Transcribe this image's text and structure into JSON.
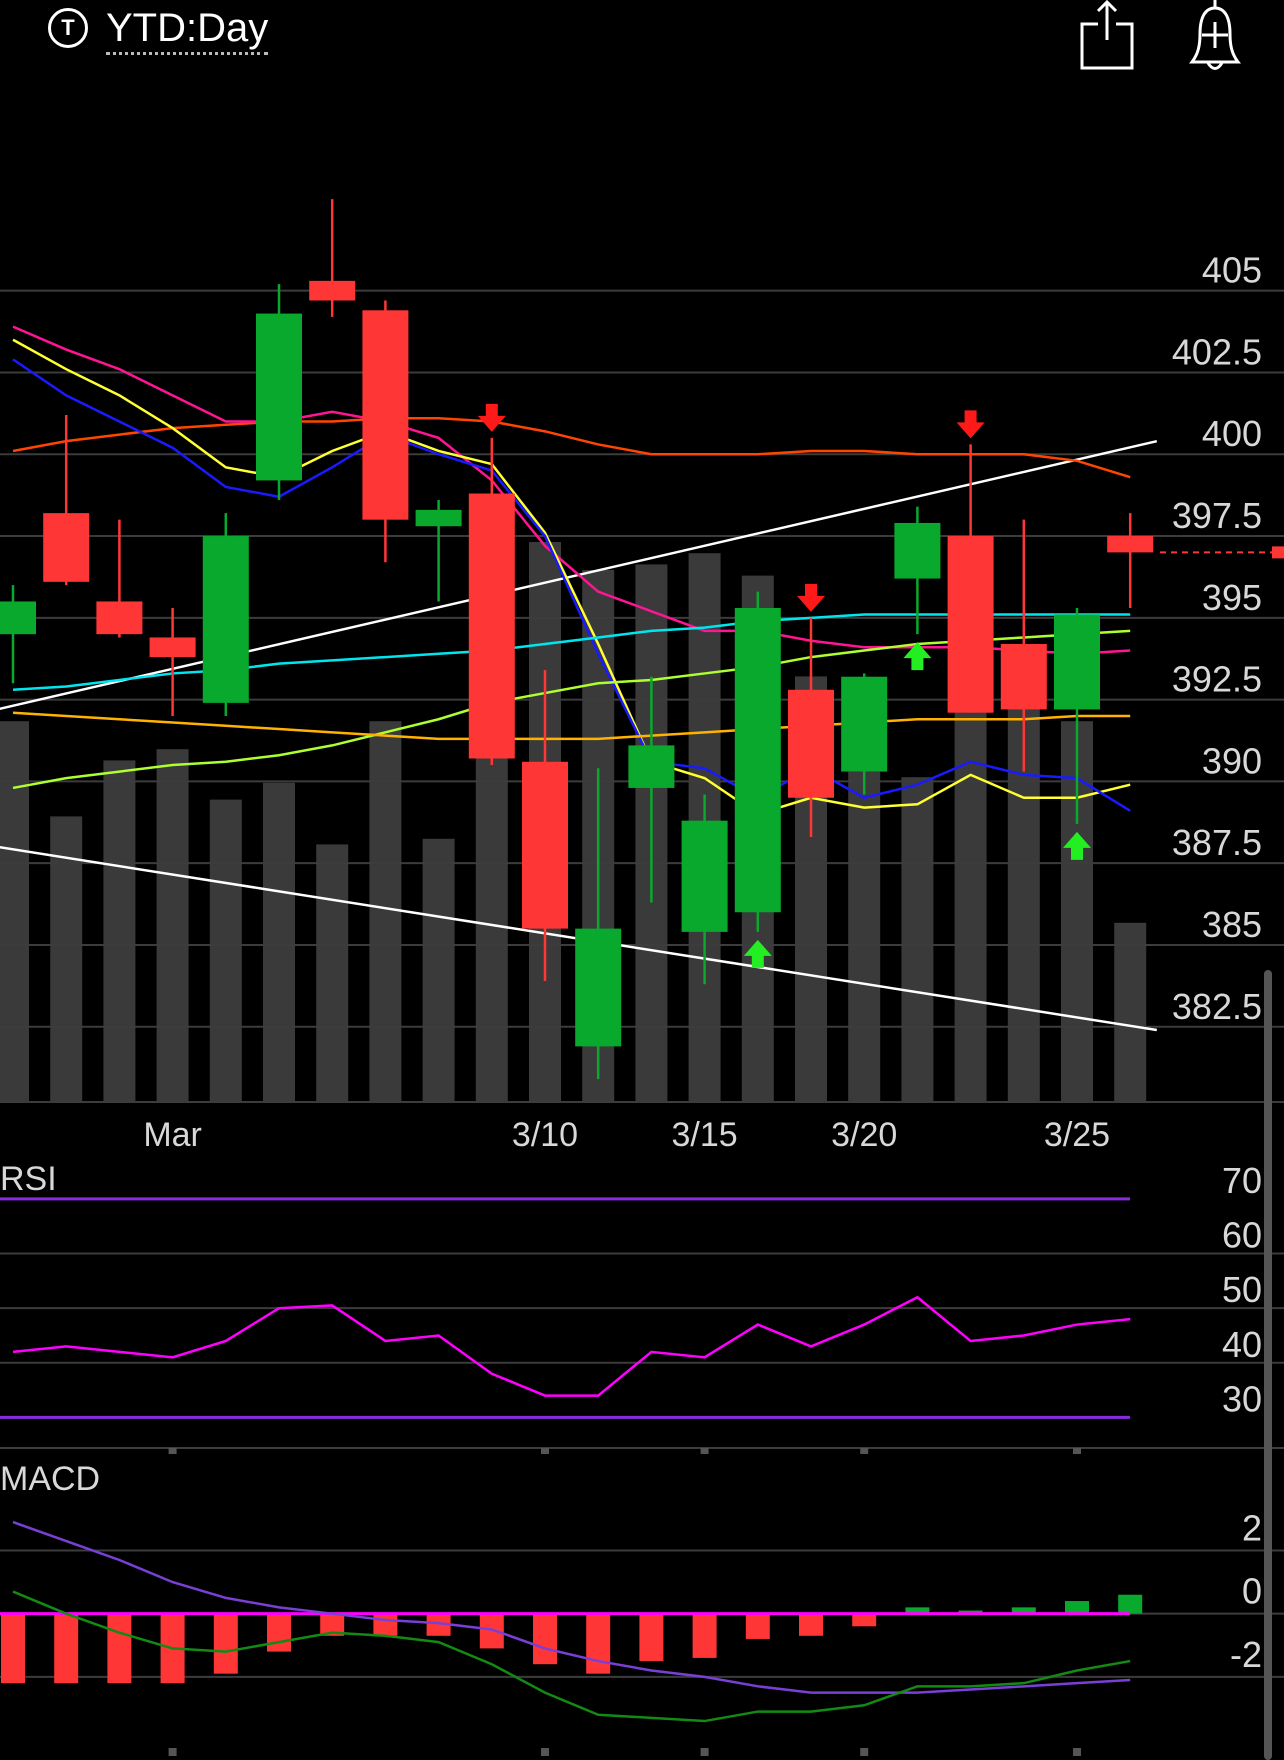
{
  "header": {
    "ticker_icon_letter": "T",
    "range_label": "YTD:Day",
    "share_icon": "share-icon",
    "alert_icon": "add-alert-bell-icon"
  },
  "colors": {
    "up": "#09a92d",
    "down": "#ff3636",
    "volume": "#3a3a3a",
    "grid": "#3c3c3c",
    "rsi_line": "#ff00ff",
    "rsi_band": "#8a2be2",
    "macd_line": "#7a3fd6",
    "signal_line": "#138a13",
    "macd_zero": "#ff00ff"
  },
  "chart_data": [
    {
      "type": "candlestick",
      "panel": "price",
      "x_labels": [
        "Mar",
        "3/10",
        "3/15",
        "3/20",
        "3/25"
      ],
      "y_ticks": [
        382.5,
        385,
        387.5,
        390,
        392.5,
        395,
        397.5,
        400,
        402.5,
        405
      ],
      "ylim": [
        380.2,
        409.3
      ],
      "candles": [
        {
          "o": 394.5,
          "h": 396.0,
          "l": 393.0,
          "c": 395.5
        },
        {
          "o": 398.2,
          "h": 401.2,
          "l": 396.0,
          "c": 396.1
        },
        {
          "o": 395.5,
          "h": 398.0,
          "l": 394.4,
          "c": 394.5
        },
        {
          "o": 394.4,
          "h": 395.3,
          "l": 392.0,
          "c": 393.8
        },
        {
          "o": 392.4,
          "h": 398.2,
          "l": 392.0,
          "c": 397.5
        },
        {
          "o": 399.2,
          "h": 405.2,
          "l": 398.6,
          "c": 404.3
        },
        {
          "o": 405.3,
          "h": 407.8,
          "l": 404.2,
          "c": 404.7
        },
        {
          "o": 404.4,
          "h": 404.7,
          "l": 396.7,
          "c": 398.0
        },
        {
          "o": 397.8,
          "h": 398.6,
          "l": 395.5,
          "c": 398.3
        },
        {
          "o": 398.8,
          "h": 400.5,
          "l": 390.5,
          "c": 390.7
        },
        {
          "o": 390.6,
          "h": 393.4,
          "l": 383.9,
          "c": 385.5
        },
        {
          "o": 381.9,
          "h": 390.4,
          "l": 380.9,
          "c": 385.5
        },
        {
          "o": 389.8,
          "h": 393.2,
          "l": 386.3,
          "c": 391.1
        },
        {
          "o": 385.4,
          "h": 389.6,
          "l": 383.8,
          "c": 388.8
        },
        {
          "o": 386.0,
          "h": 395.8,
          "l": 385.4,
          "c": 395.3
        },
        {
          "o": 392.8,
          "h": 395.0,
          "l": 388.3,
          "c": 389.5
        },
        {
          "o": 390.3,
          "h": 393.3,
          "l": 389.6,
          "c": 393.2
        },
        {
          "o": 396.2,
          "h": 398.4,
          "l": 394.5,
          "c": 397.9
        },
        {
          "o": 397.5,
          "h": 400.3,
          "l": 392.1,
          "c": 392.1
        },
        {
          "o": 394.2,
          "h": 398.0,
          "l": 390.3,
          "c": 392.2
        },
        {
          "o": 392.2,
          "h": 395.3,
          "l": 388.7,
          "c": 395.1
        },
        {
          "o": 397.5,
          "h": 398.2,
          "l": 395.3,
          "c": 397.0
        }
      ],
      "volume_relative": [
        0.68,
        0.51,
        0.61,
        0.63,
        0.54,
        0.57,
        0.46,
        0.68,
        0.47,
        0.7,
        1.0,
        0.95,
        0.96,
        0.98,
        0.94,
        0.76,
        0.59,
        0.58,
        0.7,
        0.75,
        0.68,
        0.32
      ],
      "signals": [
        {
          "i": 9,
          "dir": "sell"
        },
        {
          "i": 14,
          "dir": "buy"
        },
        {
          "i": 15,
          "dir": "sell"
        },
        {
          "i": 17,
          "dir": "buy"
        },
        {
          "i": 18,
          "dir": "sell"
        },
        {
          "i": 20,
          "dir": "buy"
        }
      ],
      "moving_averages": [
        {
          "color": "#ff4500",
          "values": [
            400.1,
            400.4,
            400.6,
            400.8,
            400.9,
            401.0,
            401.0,
            401.1,
            401.1,
            401.0,
            400.7,
            400.3,
            400.0,
            400.0,
            400.0,
            400.1,
            400.1,
            400.0,
            400.0,
            400.0,
            399.8,
            399.3
          ]
        },
        {
          "color": "#ff1493",
          "values": [
            403.9,
            403.2,
            402.6,
            401.8,
            401.0,
            401.0,
            401.3,
            401.0,
            400.5,
            399.2,
            397.2,
            395.8,
            395.2,
            394.6,
            394.6,
            394.3,
            394.1,
            394.1,
            394.1,
            394.0,
            393.9,
            394.0
          ]
        },
        {
          "color": "#ffff33",
          "values": [
            403.5,
            402.6,
            401.8,
            400.8,
            399.6,
            399.3,
            400.1,
            400.7,
            400.1,
            399.7,
            397.6,
            394.2,
            390.6,
            390.1,
            389.0,
            389.5,
            389.2,
            389.3,
            390.2,
            389.5,
            389.5,
            389.9
          ]
        },
        {
          "color": "#1a1aff",
          "values": [
            402.9,
            401.8,
            401.0,
            400.2,
            399.0,
            398.7,
            399.6,
            400.6,
            400.0,
            399.5,
            397.5,
            393.9,
            390.6,
            390.4,
            389.5,
            390.4,
            389.5,
            389.9,
            390.6,
            390.2,
            390.1,
            389.1
          ]
        },
        {
          "color": "#00e5ee",
          "values": [
            392.8,
            392.9,
            393.1,
            393.3,
            393.4,
            393.6,
            393.7,
            393.8,
            393.9,
            394.0,
            394.2,
            394.4,
            394.6,
            394.7,
            394.9,
            395.0,
            395.1,
            395.1,
            395.1,
            395.1,
            395.1,
            395.1
          ]
        },
        {
          "color": "#adff2f",
          "values": [
            389.8,
            390.1,
            390.3,
            390.5,
            390.6,
            390.8,
            391.1,
            391.5,
            391.9,
            392.4,
            392.7,
            393.0,
            393.1,
            393.3,
            393.5,
            393.8,
            394.0,
            394.2,
            394.3,
            394.4,
            394.5,
            394.6
          ]
        },
        {
          "color": "#ffb300",
          "values": [
            392.1,
            392.0,
            391.9,
            391.8,
            391.7,
            391.6,
            391.5,
            391.4,
            391.3,
            391.3,
            391.3,
            391.3,
            391.4,
            391.5,
            391.6,
            391.7,
            391.8,
            391.9,
            391.9,
            391.9,
            392.0,
            392.0
          ]
        }
      ],
      "trendlines": [
        {
          "from": [
            -0.3,
            392.2
          ],
          "to": [
            21.5,
            400.4
          ]
        },
        {
          "from": [
            -0.3,
            388.0
          ],
          "to": [
            21.5,
            382.4
          ]
        }
      ]
    },
    {
      "type": "line",
      "panel": "rsi",
      "title": "RSI",
      "y_ticks": [
        30,
        40,
        50,
        60,
        70
      ],
      "ylim": [
        25.5,
        72
      ],
      "bands": [
        30,
        70
      ],
      "series": [
        {
          "values": [
            42,
            43,
            42,
            41,
            44,
            50,
            50.5,
            44,
            45,
            38,
            34,
            34,
            42,
            41,
            47,
            43,
            47,
            52,
            44,
            45,
            47,
            48
          ]
        }
      ]
    },
    {
      "type": "bar",
      "panel": "macd",
      "title": "MACD",
      "y_ticks": [
        -2,
        0,
        2
      ],
      "ylim": [
        -4.0,
        3.6
      ],
      "histogram": [
        -2.2,
        -2.2,
        -2.2,
        -2.2,
        -1.9,
        -1.2,
        -0.7,
        -0.7,
        -0.7,
        -1.1,
        -1.6,
        -1.9,
        -1.5,
        -1.4,
        -0.8,
        -0.7,
        -0.4,
        0.2,
        0.1,
        0.2,
        0.4,
        0.6
      ],
      "series": [
        {
          "values": [
            2.9,
            2.3,
            1.7,
            1.0,
            0.5,
            0.2,
            0.0,
            -0.2,
            -0.3,
            -0.5,
            -1.1,
            -1.5,
            -1.8,
            -2.0,
            -2.3,
            -2.5,
            -2.5,
            -2.5,
            -2.4,
            -2.3,
            -2.2,
            -2.1
          ]
        },
        {
          "values": [
            0.7,
            0.0,
            -0.6,
            -1.1,
            -1.2,
            -0.9,
            -0.6,
            -0.7,
            -0.9,
            -1.6,
            -2.5,
            -3.2,
            -3.3,
            -3.4,
            -3.1,
            -3.1,
            -2.9,
            -2.3,
            -2.3,
            -2.2,
            -1.8,
            -1.5
          ]
        }
      ]
    }
  ]
}
